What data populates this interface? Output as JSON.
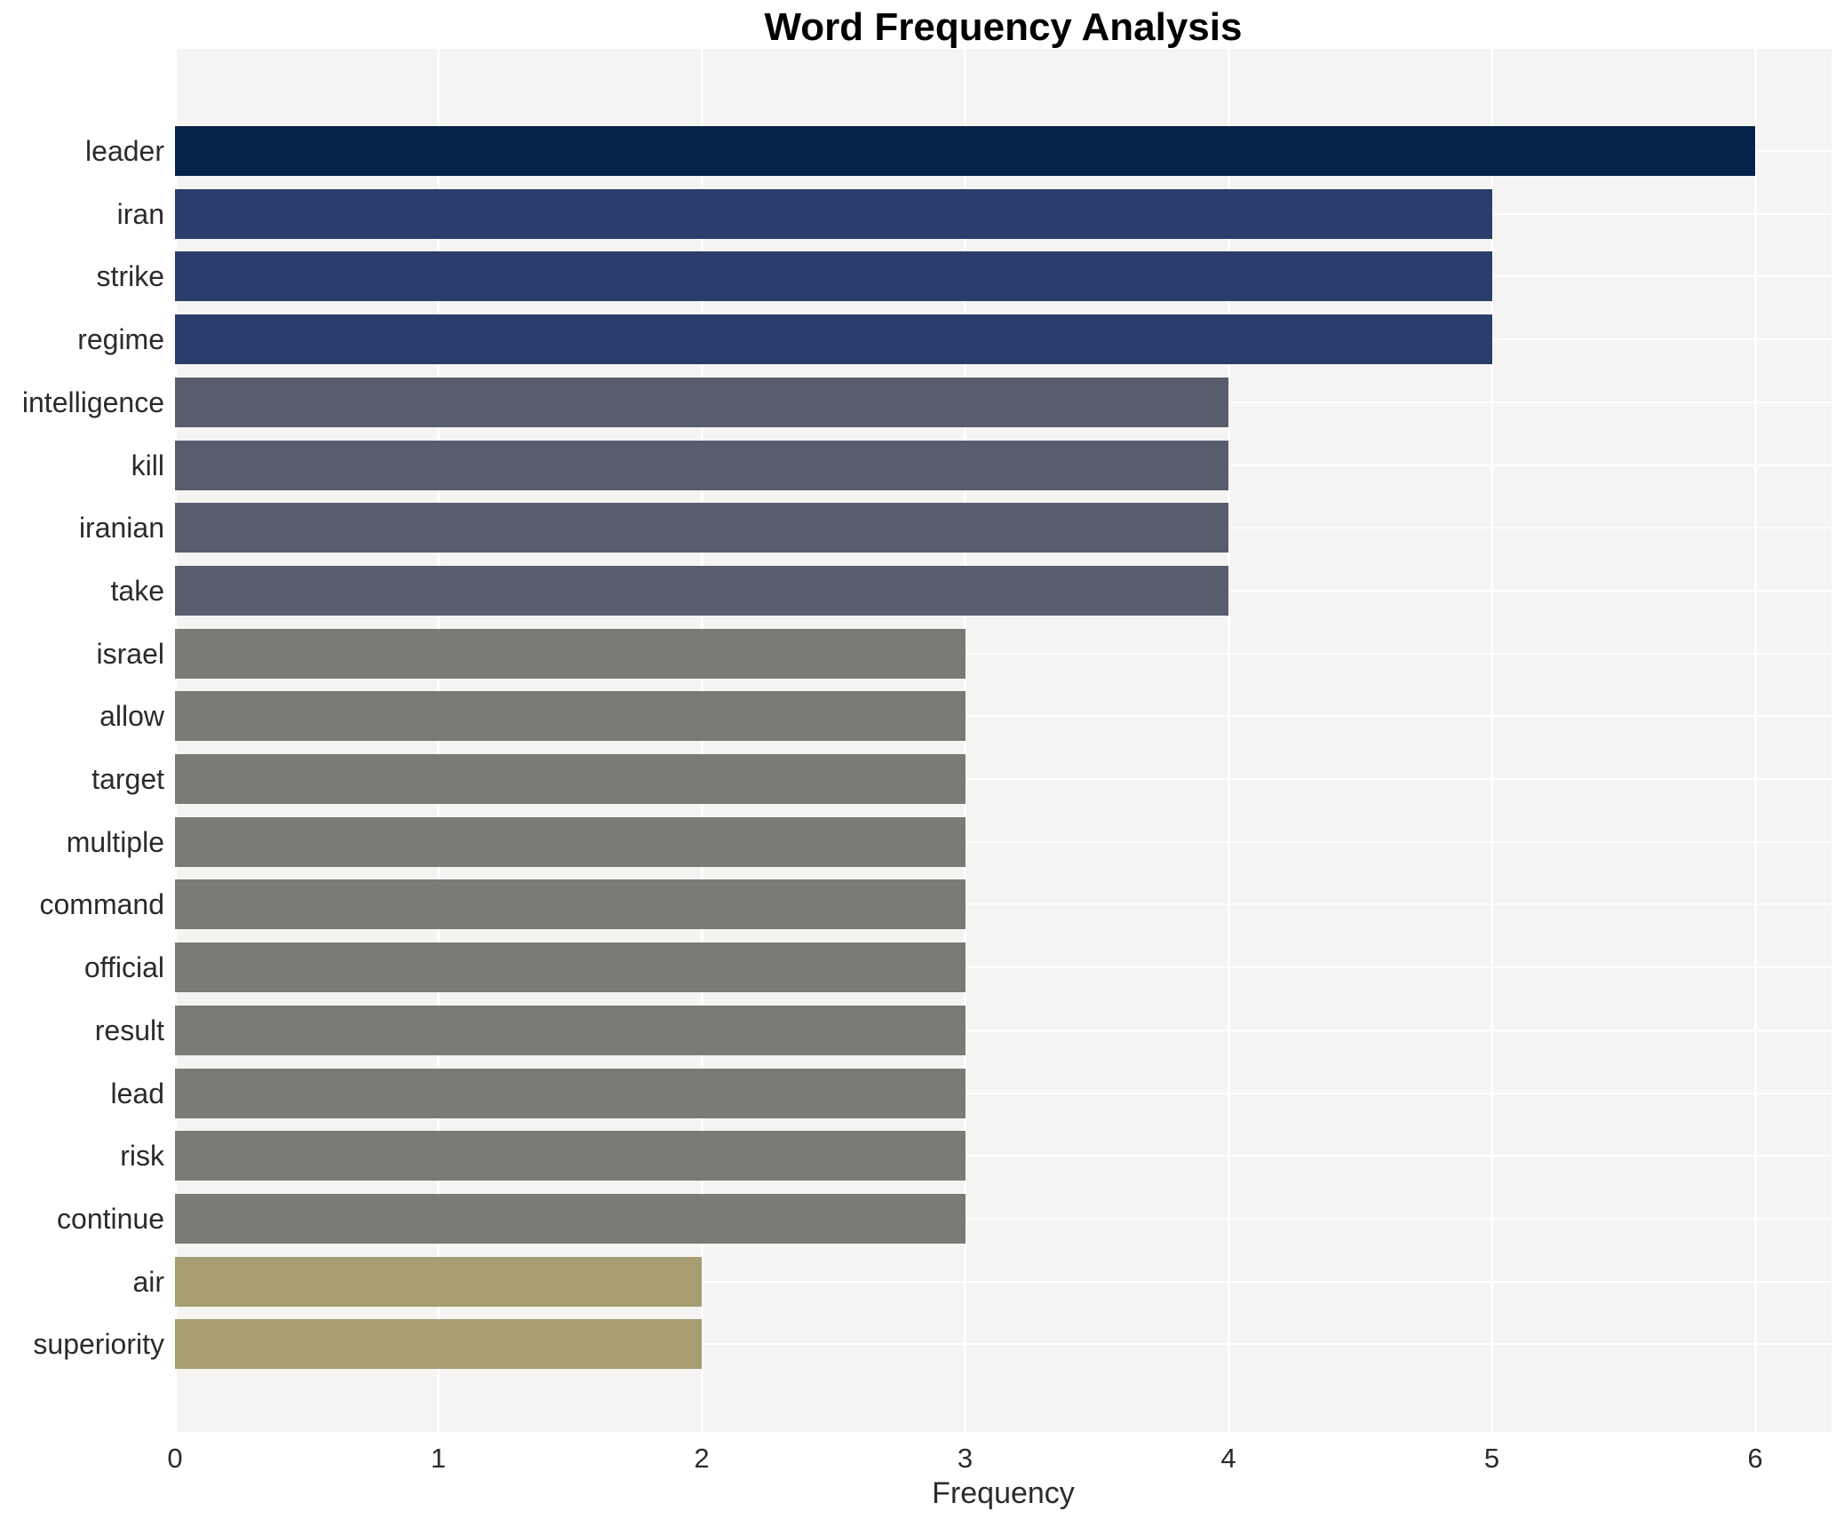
{
  "title": "Word Frequency Analysis",
  "chart_data": {
    "type": "bar",
    "orientation": "horizontal",
    "title": "Word Frequency Analysis",
    "xlabel": "Frequency",
    "ylabel": "",
    "categories": [
      "leader",
      "iran",
      "strike",
      "regime",
      "intelligence",
      "kill",
      "iranian",
      "take",
      "israel",
      "allow",
      "target",
      "multiple",
      "command",
      "official",
      "result",
      "lead",
      "risk",
      "continue",
      "air",
      "superiority"
    ],
    "values": [
      6,
      5,
      5,
      5,
      4,
      4,
      4,
      4,
      3,
      3,
      3,
      3,
      3,
      3,
      3,
      3,
      3,
      3,
      2,
      2
    ],
    "bar_colors": [
      "#07234b",
      "#2b3e6b",
      "#2b3e6b",
      "#2b3e6b",
      "#575d6c",
      "#575d6c",
      "#575d6c",
      "#575d6c",
      "#7b7a75",
      "#7b7a75",
      "#7b7a75",
      "#7b7a75",
      "#7b7a75",
      "#7b7a75",
      "#7b7a75",
      "#7b7a75",
      "#7b7a75",
      "#7b7a75",
      "#a69d71",
      "#a69d71"
    ],
    "xticks": [
      0,
      1,
      2,
      3,
      4,
      5,
      6
    ],
    "xlim": [
      0,
      6.29
    ],
    "grid": true,
    "legend_position": "none",
    "plot_background": "#f5f4f3",
    "grid_color": "#ffffff"
  }
}
